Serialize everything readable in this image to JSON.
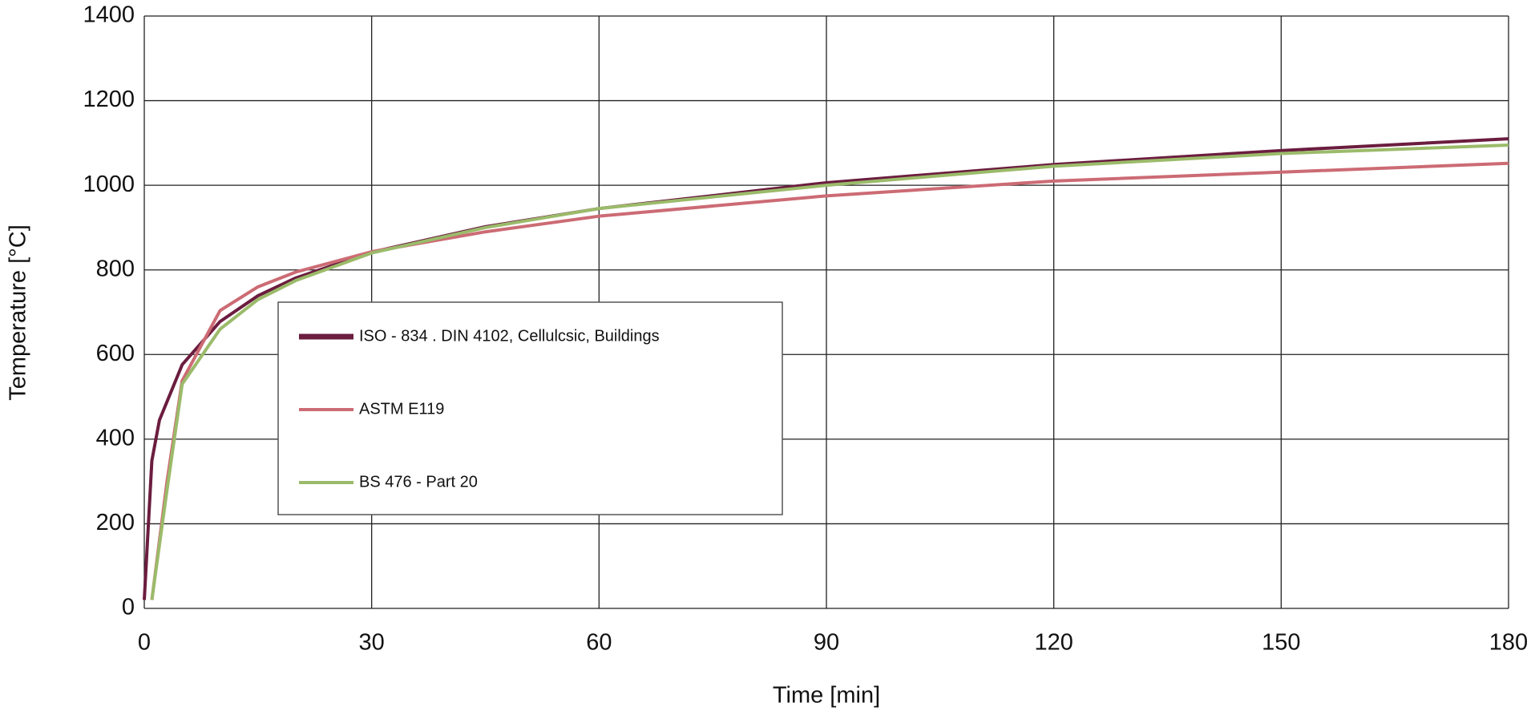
{
  "chart_data": {
    "type": "line",
    "xlabel": "Time [min]",
    "ylabel": "Temperature [°C]",
    "xlim": [
      0,
      180
    ],
    "xticks": [
      0,
      30,
      60,
      90,
      120,
      150,
      180
    ],
    "ylim": [
      0,
      1400
    ],
    "yticks": [
      0,
      200,
      400,
      600,
      800,
      1000,
      1200,
      1400
    ],
    "grid": true,
    "series": [
      {
        "name": "ISO - 834 . DIN 4102, Cellulcsic, Buildings",
        "color": "#6b1d3f",
        "x": [
          0,
          1,
          2,
          5,
          10,
          15,
          20,
          30,
          45,
          60,
          90,
          120,
          150,
          180
        ],
        "values": [
          20,
          349,
          445,
          576,
          678,
          739,
          781,
          842,
          902,
          945,
          1006,
          1049,
          1082,
          1110
        ]
      },
      {
        "name": "ASTM E119",
        "color": "#cc6b74",
        "x": [
          1,
          3,
          5,
          10,
          15,
          20,
          30,
          45,
          60,
          90,
          120,
          150,
          180
        ],
        "values": [
          20,
          300,
          538,
          704,
          760,
          795,
          843,
          890,
          927,
          975,
          1010,
          1031,
          1052
        ]
      },
      {
        "name": "BS 476 - Part 20",
        "color": "#9bbb6a",
        "x": [
          1,
          3,
          5,
          10,
          15,
          20,
          30,
          45,
          60,
          90,
          120,
          150,
          180
        ],
        "values": [
          20,
          280,
          530,
          660,
          730,
          775,
          840,
          900,
          945,
          1000,
          1045,
          1075,
          1095
        ]
      }
    ]
  }
}
